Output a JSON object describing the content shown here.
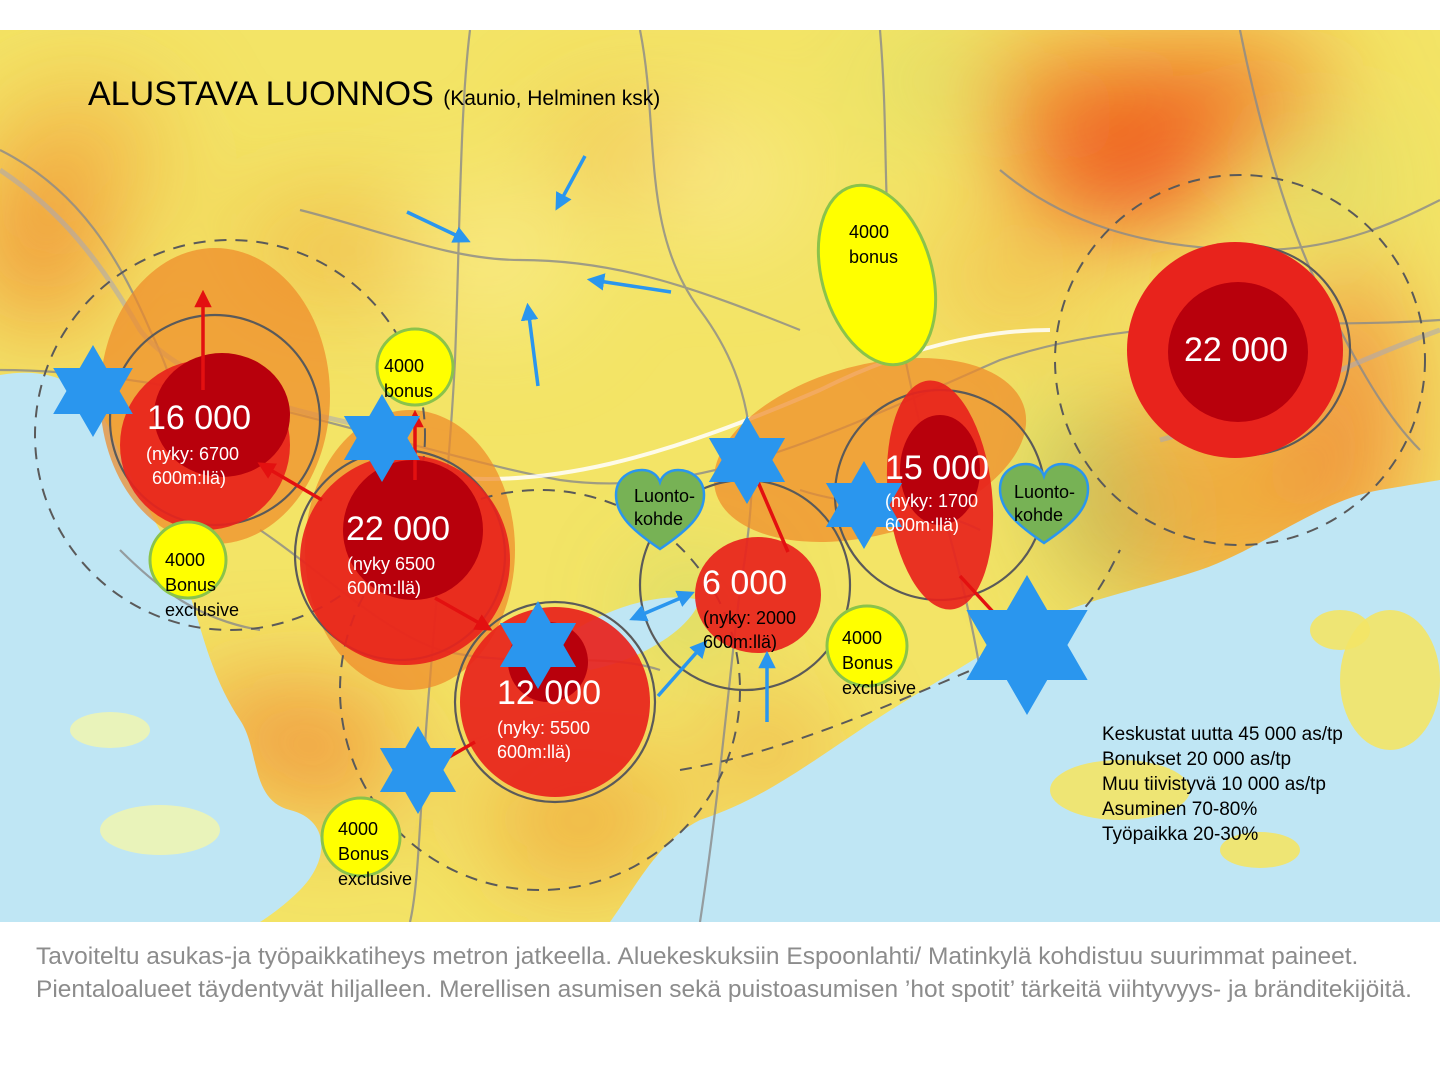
{
  "title": {
    "main": "ALUSTAVA LUONNOS",
    "paren": "(Kaunio, Helminen ksk)"
  },
  "hotspots": [
    {
      "value": "16 000",
      "sub1": "(nyky: 6700",
      "sub2": "600m:llä)"
    },
    {
      "value": "22 000",
      "sub1": "(nyky 6500",
      "sub2": "600m:llä)"
    },
    {
      "value": "12 000",
      "sub1": "(nyky: 5500",
      "sub2": "600m:llä)"
    },
    {
      "value": "6 000",
      "sub1": "(nyky: 2000",
      "sub2": "600m:llä)"
    },
    {
      "value": "15 000",
      "sub1": "(nyky: 1700",
      "sub2": "600m:llä)"
    },
    {
      "value": "22 000"
    }
  ],
  "bonuses": [
    {
      "l1": "4000",
      "l2": "bonus"
    },
    {
      "l1": "4000",
      "l2": "bonus"
    },
    {
      "l1": "4000",
      "l2": "Bonus",
      "l3": "exclusive"
    },
    {
      "l1": "4000",
      "l2": "Bonus",
      "l3": "exclusive"
    },
    {
      "l1": "4000",
      "l2": "Bonus",
      "l3": "exclusive"
    }
  ],
  "nature": [
    {
      "l1": "Luonto-",
      "l2": "kohde"
    },
    {
      "l1": "Luonto-",
      "l2": "kohde"
    }
  ],
  "legend": [
    "Keskustat uutta 45 000 as/tp",
    "Bonukset 20 000 as/tp",
    "Muu tiivistyvä 10 000 as/tp",
    "Asuminen 70-80%",
    "Työpaikka 20-30%"
  ],
  "caption": "Tavoiteltu asukas-ja työpaikkatiheys metron jatkeella. Aluekeskuksiin Espoonlahti/ Matinkylä kohdistuu suurimmat paineet. Pientaloalueet täydentyvät hiljalleen. Merellisen asumisen sekä puistoasumisen ’hot spotit’ tärkeitä viihtyvyys- ja bränditekijöitä.",
  "colors": {
    "land": "#f3e466",
    "water": "#bfe6f4",
    "heat_orange": "#ef8a2a",
    "hotspot_red": "#e8231c",
    "hotspot_core": "#b8000c",
    "star_blue": "#2a96ee",
    "arrow_blue": "#2a96ee",
    "arrow_red": "#e31010",
    "bonus_yellow": "#ffff00",
    "bonus_border": "#8bc34a",
    "heart_green": "#77b255",
    "caption_gray": "#8c8c8c"
  }
}
